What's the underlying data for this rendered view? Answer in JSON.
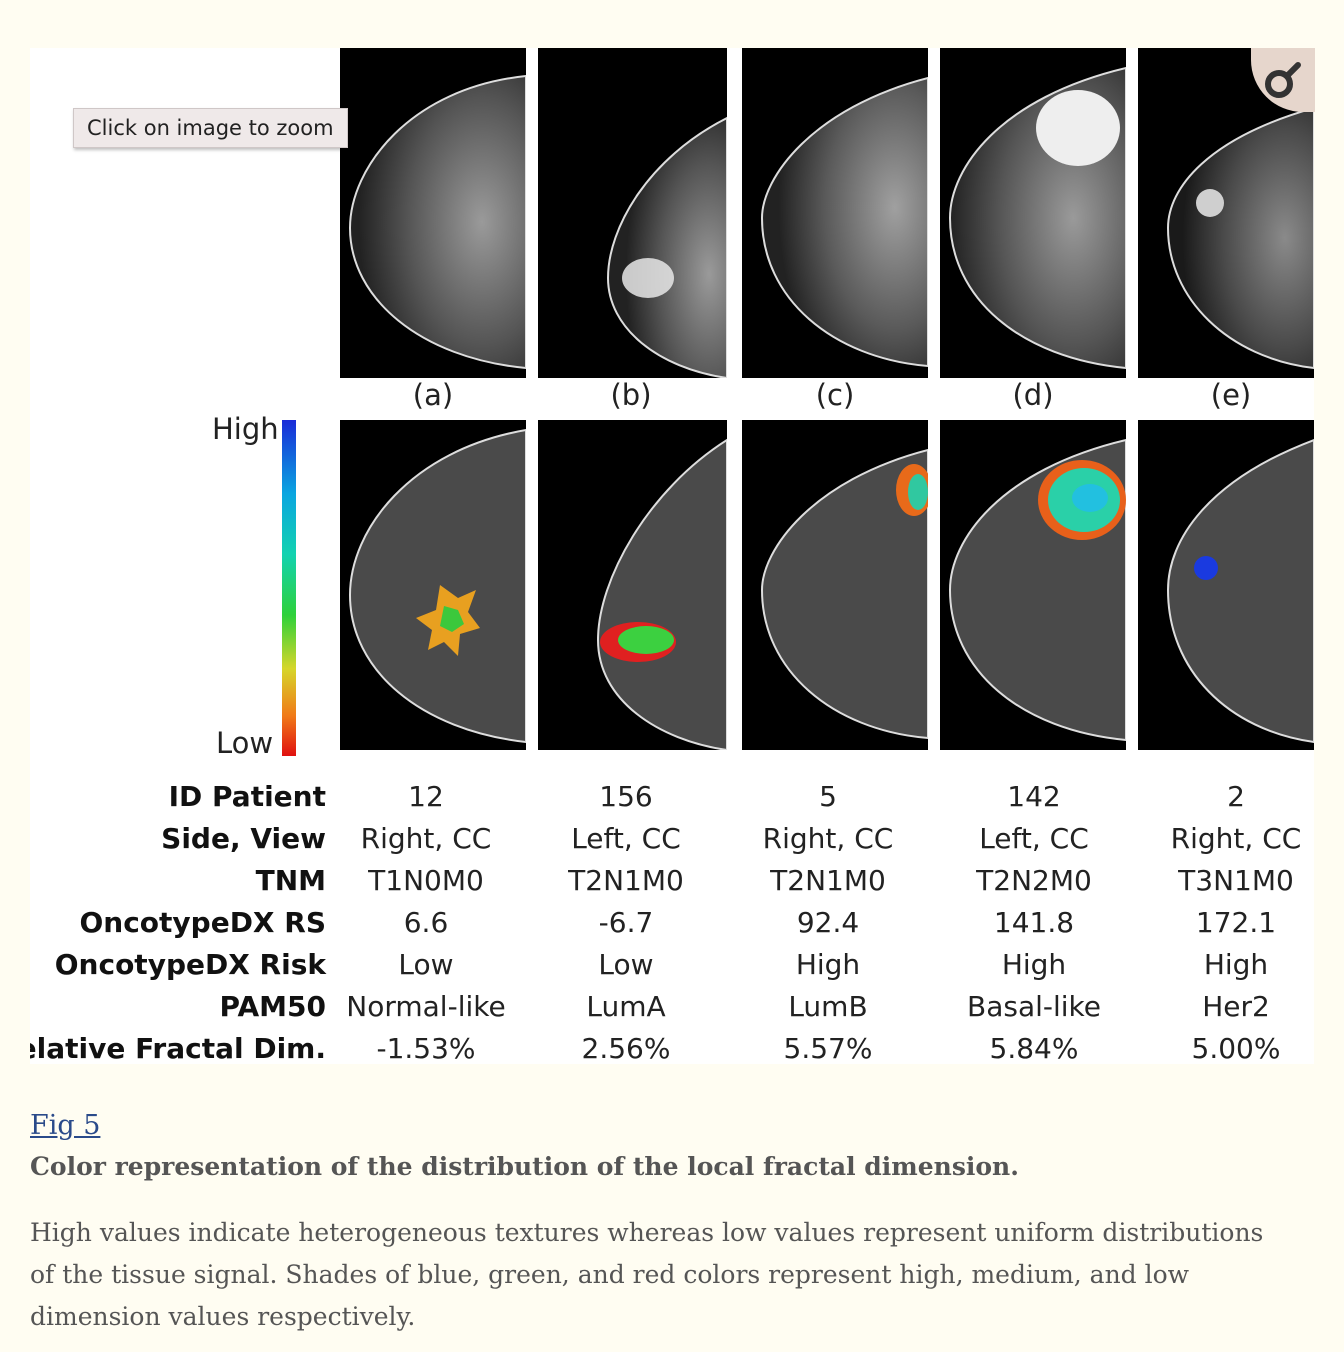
{
  "figure": {
    "panel_labels": [
      "(a)",
      "(b)",
      "(c)",
      "(d)",
      "(e)"
    ],
    "scale": {
      "high": "High",
      "low": "Low"
    },
    "table": {
      "row_labels": [
        "ID Patient",
        "Side, View",
        "TNM",
        "OncotypeDX RS",
        "OncotypeDX Risk",
        "PAM50",
        "Relative Fractal Dim."
      ],
      "columns": [
        [
          "12",
          "Right, CC",
          "T1N0M0",
          "6.6",
          "Low",
          "Normal-like",
          "-1.53%"
        ],
        [
          "156",
          "Left, CC",
          "T2N1M0",
          "-6.7",
          "Low",
          "LumA",
          "2.56%"
        ],
        [
          "5",
          "Right, CC",
          "T2N1M0",
          "92.4",
          "High",
          "LumB",
          "5.57%"
        ],
        [
          "142",
          "Left, CC",
          "T2N2M0",
          "141.8",
          "High",
          "Basal-like",
          "5.84%"
        ],
        [
          "2",
          "Right, CC",
          "T3N1M0",
          "172.1",
          "High",
          "Her2",
          "5.00%"
        ]
      ]
    },
    "colorbar_colors": [
      "#1a2bd8",
      "#0aa6e0",
      "#12d2b0",
      "#2ed13a",
      "#d6d62a",
      "#f07a18",
      "#e01010"
    ]
  },
  "zoom_tooltip": "Click on image to zoom",
  "zoom_icon": "magnify-icon",
  "caption": {
    "link": "Fig 5",
    "title": "Color representation of the distribution of the local fractal dimension.",
    "body": "High values indicate heterogeneous textures whereas low values represent uniform distributions of the tissue signal. Shades of blue, green, and red colors represent high, medium, and low dimension values respectively."
  }
}
